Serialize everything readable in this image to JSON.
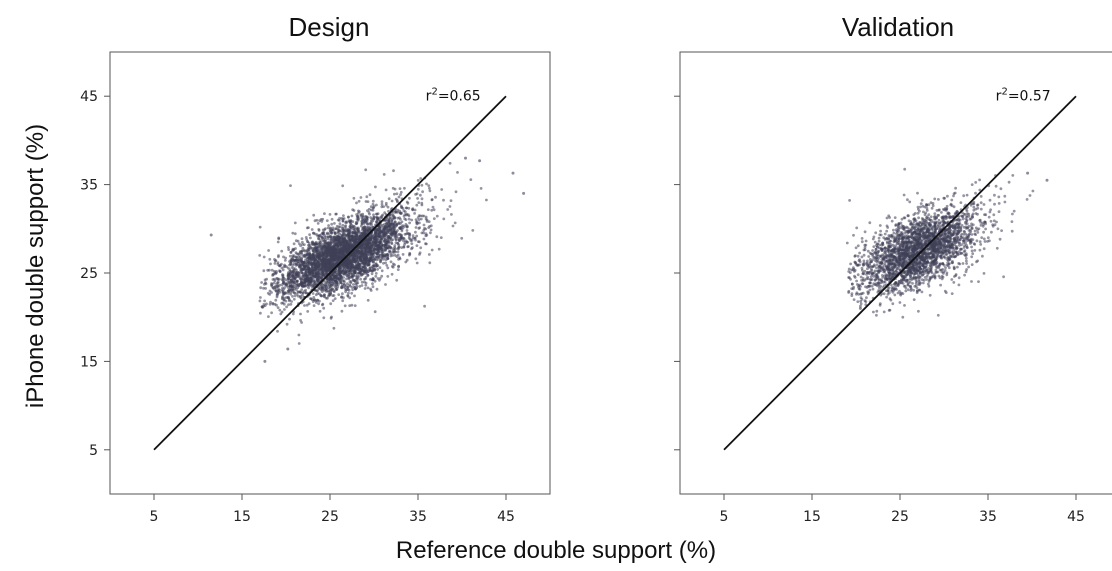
{
  "figure": {
    "xlabel": "Reference double support (%)",
    "ylabel": "iPhone double support (%)"
  },
  "chart_data": [
    {
      "type": "scatter",
      "title": "Design",
      "xlim": [
        0,
        50
      ],
      "ylim": [
        0,
        50
      ],
      "xticks": [
        5,
        15,
        25,
        35,
        45
      ],
      "yticks": [
        5,
        15,
        25,
        35,
        45
      ],
      "y_tick_labels_visible": true,
      "identity_line": [
        [
          5,
          5
        ],
        [
          45,
          45
        ]
      ],
      "annotation": {
        "text_base": "r",
        "text_sup": "2",
        "text_value": "=0.65",
        "x": 39,
        "y": 44.5
      },
      "cloud": {
        "center": [
          26.5,
          27.0
        ],
        "spread": [
          3.6,
          2.3
        ],
        "corr": 0.65,
        "x_range": [
          17,
          47
        ],
        "y_range": [
          17,
          38
        ]
      },
      "outliers": [
        [
          11.5,
          29.3
        ],
        [
          17.6,
          15.0
        ],
        [
          19.0,
          22.5
        ],
        [
          20.2,
          16.4
        ],
        [
          42.0,
          37.7
        ],
        [
          47.0,
          34.0
        ],
        [
          45.8,
          36.3
        ],
        [
          40.4,
          38.0
        ]
      ],
      "point_color": "#3f3f57",
      "grid": false
    },
    {
      "type": "scatter",
      "title": "Validation",
      "xlim": [
        0,
        50
      ],
      "ylim": [
        0,
        50
      ],
      "xticks": [
        5,
        15,
        25,
        35,
        45
      ],
      "yticks": [
        5,
        15,
        25,
        35,
        45
      ],
      "y_tick_labels_visible": false,
      "identity_line": [
        [
          5,
          5
        ],
        [
          45,
          45
        ]
      ],
      "annotation": {
        "text_base": "r",
        "text_sup": "2",
        "text_value": "=0.57",
        "x": 39,
        "y": 44.5
      },
      "cloud": {
        "center": [
          27.0,
          27.5
        ],
        "spread": [
          3.3,
          2.3
        ],
        "corr": 0.57,
        "x_range": [
          19,
          42
        ],
        "y_range": [
          19,
          37
        ]
      },
      "outliers": [
        [
          20.5,
          21.0
        ],
        [
          21.5,
          23.5
        ],
        [
          39.5,
          36.3
        ],
        [
          41.7,
          35.5
        ]
      ],
      "point_color": "#3f3f57",
      "grid": false
    }
  ]
}
